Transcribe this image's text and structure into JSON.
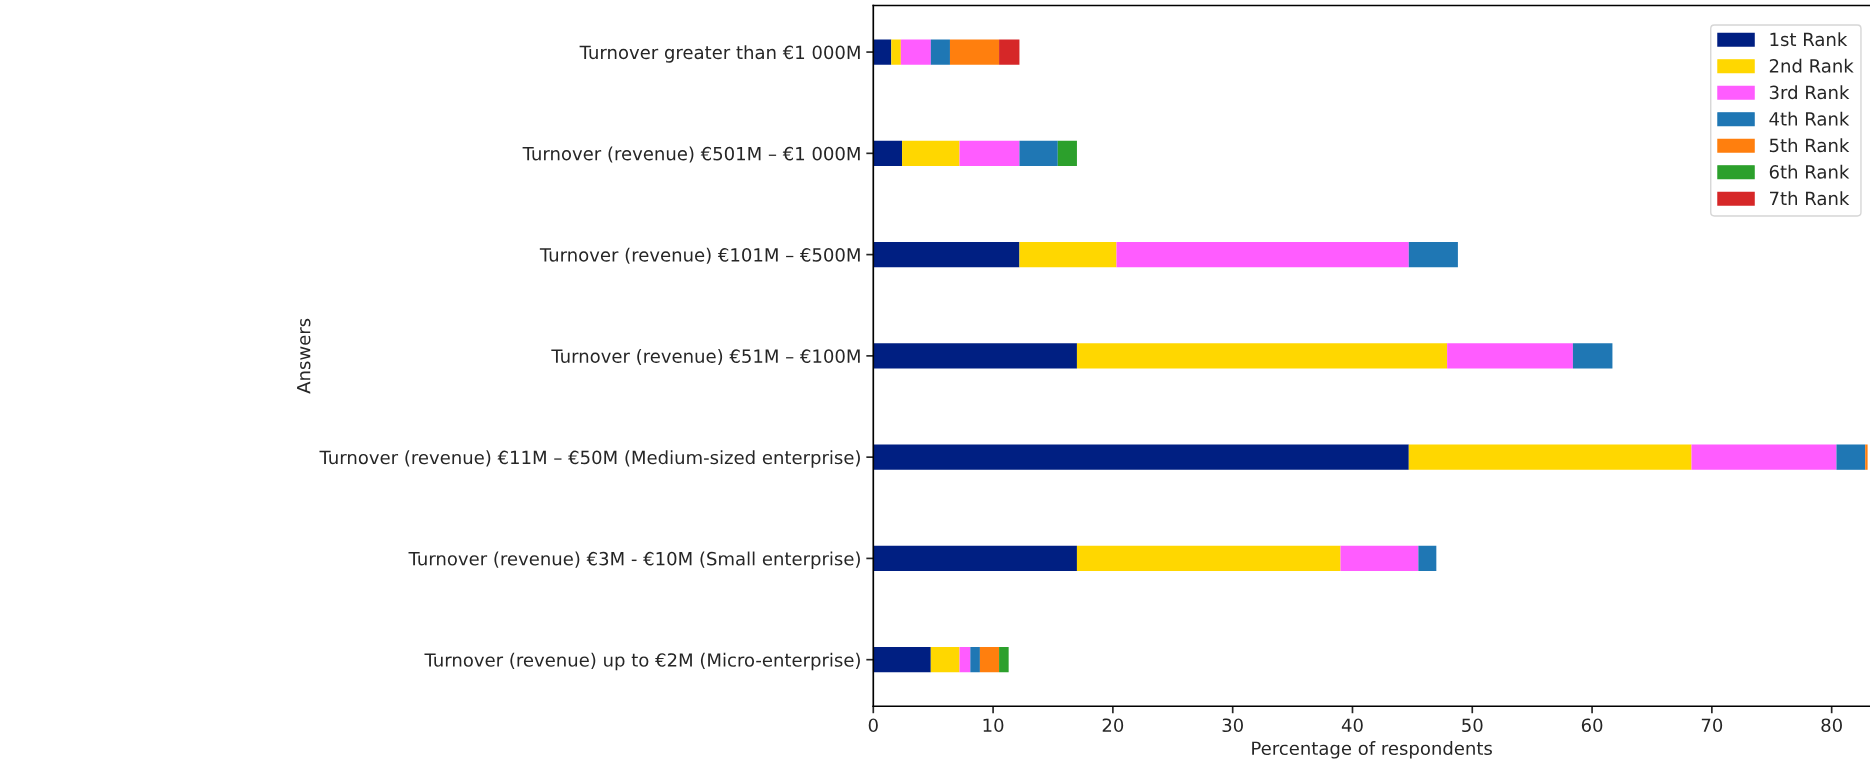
{
  "chart_data": {
    "type": "bar",
    "orientation": "horizontal",
    "stacked": true,
    "xlabel": "Percentage of respondents",
    "ylabel": "Answers",
    "categories": [
      "Turnover greater than €1 000M",
      "Turnover (revenue) €501M – €1 000M",
      "Turnover (revenue) €101M – €500M",
      "Turnover (revenue) €51M – €100M",
      "Turnover (revenue) €11M – €50M (Medium-sized enterprise)",
      "Turnover (revenue) €3M - €10M (Small enterprise)",
      "Turnover (revenue) up to €2M (Micro-enterprise)"
    ],
    "series": [
      {
        "name": "1st Rank",
        "color": "#001f82",
        "values": [
          1.5,
          2.4,
          12.2,
          17.0,
          44.7,
          17.0,
          4.8
        ]
      },
      {
        "name": "2nd Rank",
        "color": "#ffd700",
        "values": [
          0.8,
          4.8,
          8.1,
          30.9,
          23.6,
          22.0,
          2.4
        ]
      },
      {
        "name": "3rd Rank",
        "color": "#ff5cff",
        "values": [
          2.5,
          5.0,
          24.4,
          10.5,
          12.1,
          6.5,
          0.9
        ]
      },
      {
        "name": "4th Rank",
        "color": "#1f77b4",
        "values": [
          1.6,
          3.2,
          4.1,
          3.3,
          2.4,
          1.5,
          0.8
        ]
      },
      {
        "name": "5th Rank",
        "color": "#ff7f0e",
        "values": [
          4.1,
          null,
          null,
          null,
          0.2,
          null,
          1.6
        ]
      },
      {
        "name": "6th Rank",
        "color": "#2ca02c",
        "values": [
          null,
          1.6,
          null,
          null,
          null,
          null,
          0.8
        ]
      },
      {
        "name": "7th Rank",
        "color": "#d62728",
        "values": [
          1.7,
          null,
          null,
          null,
          null,
          null,
          null
        ]
      }
    ],
    "xlim": [
      0,
      83.2
    ],
    "xticks": [
      0,
      10,
      20,
      30,
      40,
      50,
      60,
      70,
      80
    ],
    "grid": false,
    "legend": "top right"
  }
}
